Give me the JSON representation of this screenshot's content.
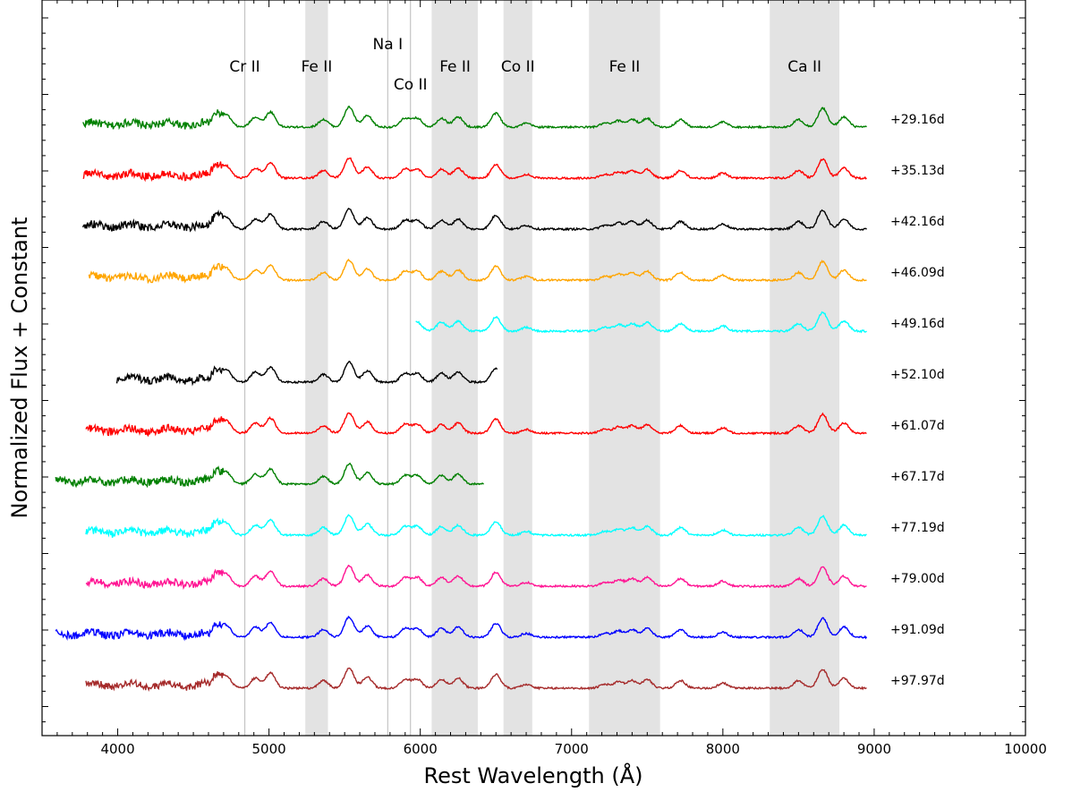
{
  "chart_data": {
    "type": "line",
    "xlabel": "Rest Wavelength (Å)",
    "ylabel": "Normalized Flux + Constant",
    "xlim": [
      3500,
      10000
    ],
    "x_ticks": [
      4000,
      5000,
      6000,
      7000,
      8000,
      9000,
      10000
    ],
    "y_ticks_labeled": false,
    "grid": false,
    "shaded_bands": [
      {
        "from": 5240,
        "to": 5390
      },
      {
        "from": 6075,
        "to": 6380
      },
      {
        "from": 6550,
        "to": 6740
      },
      {
        "from": 7115,
        "to": 7585
      },
      {
        "from": 8310,
        "to": 8770
      }
    ],
    "vertical_lines": [
      4840,
      5785,
      5935
    ],
    "line_ids": [
      {
        "label": "Cr II",
        "x": 4840,
        "row": 2
      },
      {
        "label": "Fe II",
        "x": 5315,
        "row": 2
      },
      {
        "label": "Na I",
        "x": 5785,
        "row": 1
      },
      {
        "label": "Co II",
        "x": 5935,
        "row": 3
      },
      {
        "label": "Fe II",
        "x": 6230,
        "row": 2
      },
      {
        "label": "Co II",
        "x": 6645,
        "row": 2
      },
      {
        "label": "Fe II",
        "x": 7350,
        "row": 2
      },
      {
        "label": "Ca II",
        "x": 8540,
        "row": 2
      }
    ],
    "series": [
      {
        "name": "+29.16d",
        "color": "#008000",
        "x_start": 3770,
        "x_end": 8950,
        "offset": 11
      },
      {
        "name": "+35.13d",
        "color": "#ff0000",
        "x_start": 3770,
        "x_end": 8950,
        "offset": 10
      },
      {
        "name": "+42.16d",
        "color": "#000000",
        "x_start": 3770,
        "x_end": 8950,
        "offset": 9
      },
      {
        "name": "+46.09d",
        "color": "#ffa500",
        "x_start": 3810,
        "x_end": 8950,
        "offset": 8
      },
      {
        "name": "+49.16d",
        "color": "#00ffff",
        "x_start": 5970,
        "x_end": 8950,
        "offset": 7
      },
      {
        "name": "+52.10d",
        "color": "#000000",
        "x_start": 3990,
        "x_end": 6510,
        "offset": 6
      },
      {
        "name": "+61.07d",
        "color": "#ff0000",
        "x_start": 3790,
        "x_end": 8950,
        "offset": 5
      },
      {
        "name": "+67.17d",
        "color": "#008000",
        "x_start": 3590,
        "x_end": 6420,
        "offset": 4
      },
      {
        "name": "+77.19d",
        "color": "#00ffff",
        "x_start": 3790,
        "x_end": 8950,
        "offset": 3
      },
      {
        "name": "+79.00d",
        "color": "#ff1493",
        "x_start": 3790,
        "x_end": 8950,
        "offset": 2
      },
      {
        "name": "+91.09d",
        "color": "#0000ff",
        "x_start": 3590,
        "x_end": 8950,
        "offset": 1
      },
      {
        "name": "+97.97d",
        "color": "#a52a2a",
        "x_start": 3790,
        "x_end": 8950,
        "offset": 0
      }
    ],
    "feature_profile": {
      "x": [
        4650,
        4720,
        4910,
        5010,
        5360,
        5530,
        5650,
        5900,
        5980,
        6140,
        6250,
        6500,
        6700,
        7220,
        7310,
        7400,
        7500,
        7720,
        8000,
        8500,
        8660,
        8800
      ],
      "y": [
        1.0,
        0.9,
        0.8,
        1.2,
        0.6,
        1.6,
        0.9,
        0.7,
        0.7,
        0.7,
        0.8,
        1.1,
        0.3,
        0.3,
        0.5,
        0.6,
        0.7,
        0.6,
        0.4,
        0.6,
        1.5,
        0.8
      ]
    }
  }
}
